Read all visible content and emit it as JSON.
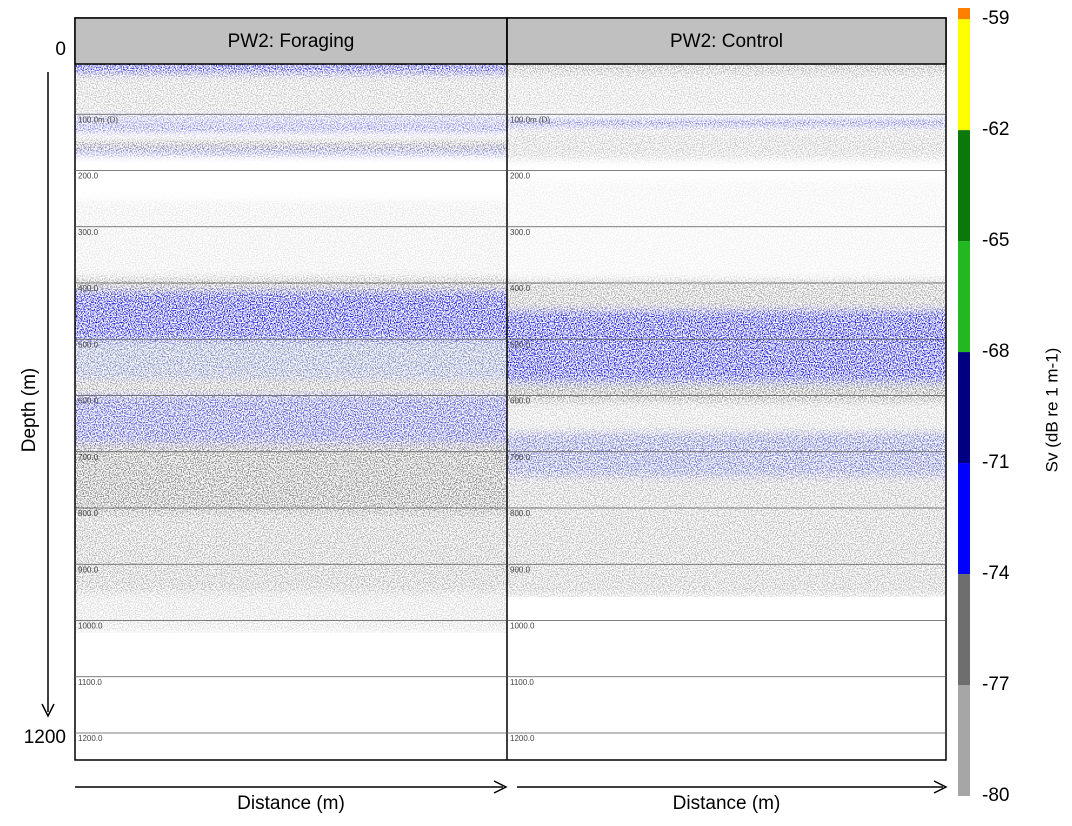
{
  "chart_data": {
    "type": "echogram",
    "ylabel": "Depth (m)",
    "ylim": [
      0,
      1200
    ],
    "yticks": [
      0,
      1200
    ],
    "panels": [
      {
        "title": "PW2: Foraging",
        "xlabel": "Distance (m)"
      },
      {
        "title": "PW2: Control",
        "xlabel": "Distance (m)"
      }
    ],
    "depth_lines": [
      {
        "value": 100,
        "label": "100.0m (D)"
      },
      {
        "value": 200,
        "label": "200.0"
      },
      {
        "value": 300,
        "label": "300.0"
      },
      {
        "value": 400,
        "label": "400.0"
      },
      {
        "value": 500,
        "label": "500.0"
      },
      {
        "value": 600,
        "label": "600.0"
      },
      {
        "value": 700,
        "label": "700.0"
      },
      {
        "value": 800,
        "label": "800.0"
      },
      {
        "value": 900,
        "label": "900.0"
      },
      {
        "value": 1000,
        "label": "1000.0"
      },
      {
        "value": 1100,
        "label": "1100.0"
      },
      {
        "value": 1200,
        "label": "1200.0"
      }
    ],
    "colorbar": {
      "label": "Sv (dB re 1 m-1)",
      "lim": [
        -80,
        -58.7
      ],
      "ticks": [
        -59,
        -62,
        -65,
        -68,
        -71,
        -74,
        -77,
        -80
      ],
      "bands": [
        {
          "from": -80,
          "to": -77,
          "color": "#a6a6a6"
        },
        {
          "from": -77,
          "to": -74,
          "color": "#6e6e6e"
        },
        {
          "from": -74,
          "to": -71,
          "color": "#0000ff"
        },
        {
          "from": -71,
          "to": -68,
          "color": "#000080"
        },
        {
          "from": -68,
          "to": -65,
          "color": "#22b822"
        },
        {
          "from": -65,
          "to": -62,
          "color": "#0b780b"
        },
        {
          "from": -62,
          "to": -59,
          "color": "#ffff00"
        },
        {
          "from": -59,
          "to": -58.7,
          "color": "#ff7f00"
        }
      ]
    }
  }
}
